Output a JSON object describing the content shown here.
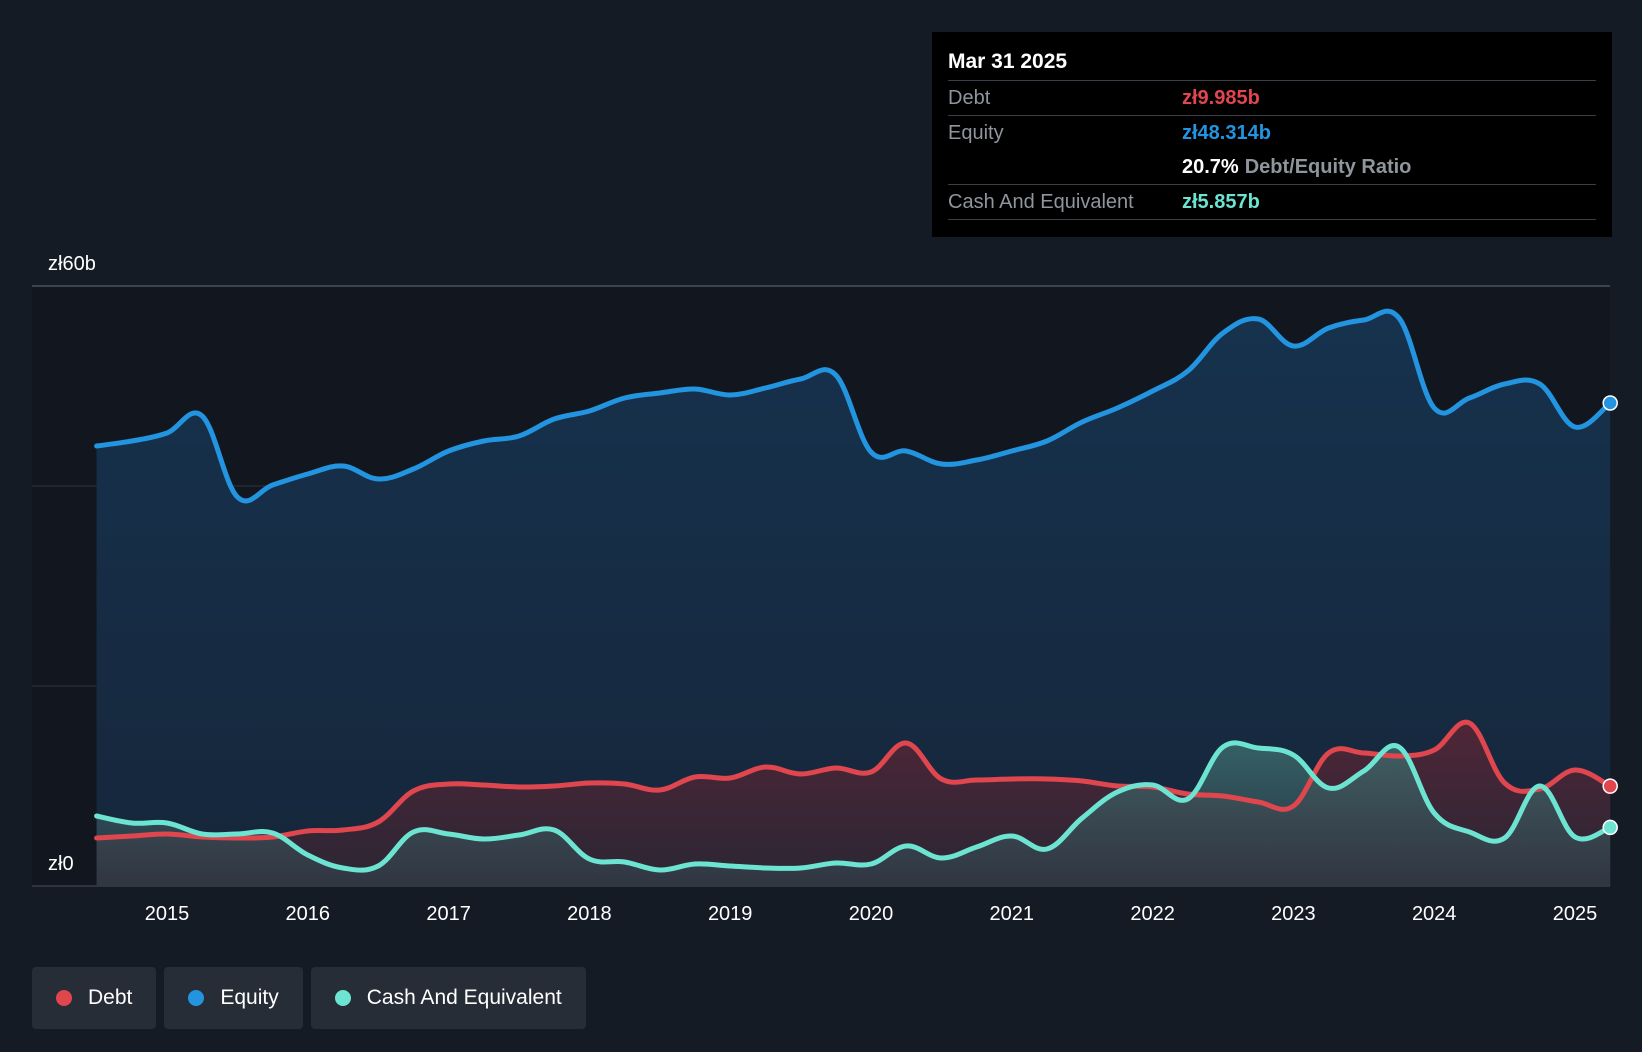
{
  "chart_data": {
    "type": "area",
    "title": "",
    "y_unit_prefix": "zł",
    "ylim": [
      0,
      60
    ],
    "y_tick_labels": [
      "zł60b",
      "zł0"
    ],
    "x_ticks": [
      2015,
      2016,
      2017,
      2018,
      2019,
      2020,
      2021,
      2022,
      2023,
      2024,
      2025
    ],
    "xlim": [
      2014.5,
      2025.25
    ],
    "grid": true,
    "legend_position": "bottom-left",
    "series": [
      {
        "name": "Equity",
        "color": "#2394df",
        "points": [
          [
            2014.5,
            44
          ],
          [
            2014.75,
            44.5
          ],
          [
            2015,
            45.3
          ],
          [
            2015.25,
            47.0
          ],
          [
            2015.5,
            38.9
          ],
          [
            2015.75,
            40.1
          ],
          [
            2016,
            41.2
          ],
          [
            2016.25,
            42.0
          ],
          [
            2016.5,
            40.7
          ],
          [
            2016.75,
            41.7
          ],
          [
            2017,
            43.5
          ],
          [
            2017.25,
            44.5
          ],
          [
            2017.5,
            45.0
          ],
          [
            2017.75,
            46.7
          ],
          [
            2018,
            47.5
          ],
          [
            2018.25,
            48.8
          ],
          [
            2018.5,
            49.3
          ],
          [
            2018.75,
            49.7
          ],
          [
            2019,
            49.1
          ],
          [
            2019.25,
            49.8
          ],
          [
            2019.5,
            50.7
          ],
          [
            2019.75,
            51.1
          ],
          [
            2020,
            43.4
          ],
          [
            2020.25,
            43.5
          ],
          [
            2020.5,
            42.2
          ],
          [
            2020.75,
            42.6
          ],
          [
            2021,
            43.5
          ],
          [
            2021.25,
            44.5
          ],
          [
            2021.5,
            46.4
          ],
          [
            2021.75,
            47.8
          ],
          [
            2022,
            49.5
          ],
          [
            2022.25,
            51.5
          ],
          [
            2022.5,
            55.3
          ],
          [
            2022.75,
            56.7
          ],
          [
            2023,
            54.0
          ],
          [
            2023.25,
            55.8
          ],
          [
            2023.5,
            56.6
          ],
          [
            2023.75,
            56.8
          ],
          [
            2024,
            47.8
          ],
          [
            2024.25,
            48.8
          ],
          [
            2024.5,
            50.2
          ],
          [
            2024.75,
            50.2
          ],
          [
            2025,
            45.9
          ],
          [
            2025.25,
            48.3
          ]
        ]
      },
      {
        "name": "Debt",
        "color": "#e0464e",
        "points": [
          [
            2014.5,
            4.8
          ],
          [
            2014.75,
            5.0
          ],
          [
            2015,
            5.2
          ],
          [
            2015.25,
            4.9
          ],
          [
            2015.5,
            4.8
          ],
          [
            2015.75,
            4.9
          ],
          [
            2016,
            5.5
          ],
          [
            2016.25,
            5.6
          ],
          [
            2016.5,
            6.4
          ],
          [
            2016.75,
            9.5
          ],
          [
            2017,
            10.2
          ],
          [
            2017.25,
            10.1
          ],
          [
            2017.5,
            9.9
          ],
          [
            2017.75,
            10.0
          ],
          [
            2018,
            10.3
          ],
          [
            2018.25,
            10.2
          ],
          [
            2018.5,
            9.6
          ],
          [
            2018.75,
            10.9
          ],
          [
            2019,
            10.8
          ],
          [
            2019.25,
            11.9
          ],
          [
            2019.5,
            11.2
          ],
          [
            2019.75,
            11.8
          ],
          [
            2020,
            11.4
          ],
          [
            2020.25,
            14.3
          ],
          [
            2020.5,
            10.7
          ],
          [
            2020.75,
            10.6
          ],
          [
            2021,
            10.7
          ],
          [
            2021.25,
            10.7
          ],
          [
            2021.5,
            10.5
          ],
          [
            2021.75,
            10.0
          ],
          [
            2022,
            9.9
          ],
          [
            2022.25,
            9.2
          ],
          [
            2022.5,
            9.0
          ],
          [
            2022.75,
            8.4
          ],
          [
            2023,
            8.0
          ],
          [
            2023.25,
            13.3
          ],
          [
            2023.5,
            13.3
          ],
          [
            2023.75,
            13.0
          ],
          [
            2024,
            13.6
          ],
          [
            2024.25,
            16.3
          ],
          [
            2024.5,
            10.3
          ],
          [
            2024.75,
            9.7
          ],
          [
            2025,
            11.6
          ],
          [
            2025.25,
            9.985
          ]
        ]
      },
      {
        "name": "Cash And Equivalent",
        "color": "#6de4d2",
        "points": [
          [
            2014.5,
            7.0
          ],
          [
            2014.75,
            6.3
          ],
          [
            2015,
            6.3
          ],
          [
            2015.25,
            5.2
          ],
          [
            2015.5,
            5.2
          ],
          [
            2015.75,
            5.3
          ],
          [
            2016,
            3.1
          ],
          [
            2016.25,
            1.8
          ],
          [
            2016.5,
            2.0
          ],
          [
            2016.75,
            5.4
          ],
          [
            2017,
            5.2
          ],
          [
            2017.25,
            4.7
          ],
          [
            2017.5,
            5.1
          ],
          [
            2017.75,
            5.6
          ],
          [
            2018,
            2.7
          ],
          [
            2018.25,
            2.4
          ],
          [
            2018.5,
            1.6
          ],
          [
            2018.75,
            2.2
          ],
          [
            2019,
            2.0
          ],
          [
            2019.25,
            1.8
          ],
          [
            2019.5,
            1.8
          ],
          [
            2019.75,
            2.3
          ],
          [
            2020,
            2.2
          ],
          [
            2020.25,
            4.0
          ],
          [
            2020.5,
            2.8
          ],
          [
            2020.75,
            3.9
          ],
          [
            2021,
            5.0
          ],
          [
            2021.25,
            3.7
          ],
          [
            2021.5,
            6.8
          ],
          [
            2021.75,
            9.4
          ],
          [
            2022,
            10.1
          ],
          [
            2022.25,
            8.7
          ],
          [
            2022.5,
            13.9
          ],
          [
            2022.75,
            13.8
          ],
          [
            2023,
            13.1
          ],
          [
            2023.25,
            9.8
          ],
          [
            2023.5,
            11.5
          ],
          [
            2023.75,
            13.9
          ],
          [
            2024,
            7.3
          ],
          [
            2024.25,
            5.4
          ],
          [
            2024.5,
            4.8
          ],
          [
            2024.75,
            10.0
          ],
          [
            2025,
            4.9
          ],
          [
            2025.25,
            5.857
          ]
        ]
      }
    ]
  },
  "tooltip": {
    "date": "Mar 31 2025",
    "rows": {
      "debt": {
        "label": "Debt",
        "value": "zł9.985b"
      },
      "equity": {
        "label": "Equity",
        "value": "zł48.314b"
      },
      "ratio": {
        "value": "20.7%",
        "label": "Debt/Equity Ratio"
      },
      "cash": {
        "label": "Cash And Equivalent",
        "value": "zł5.857b"
      }
    }
  },
  "legend": {
    "items": [
      {
        "label": "Debt",
        "color": "#e0464e"
      },
      {
        "label": "Equity",
        "color": "#2394df"
      },
      {
        "label": "Cash And Equivalent",
        "color": "#6de4d2"
      }
    ]
  }
}
